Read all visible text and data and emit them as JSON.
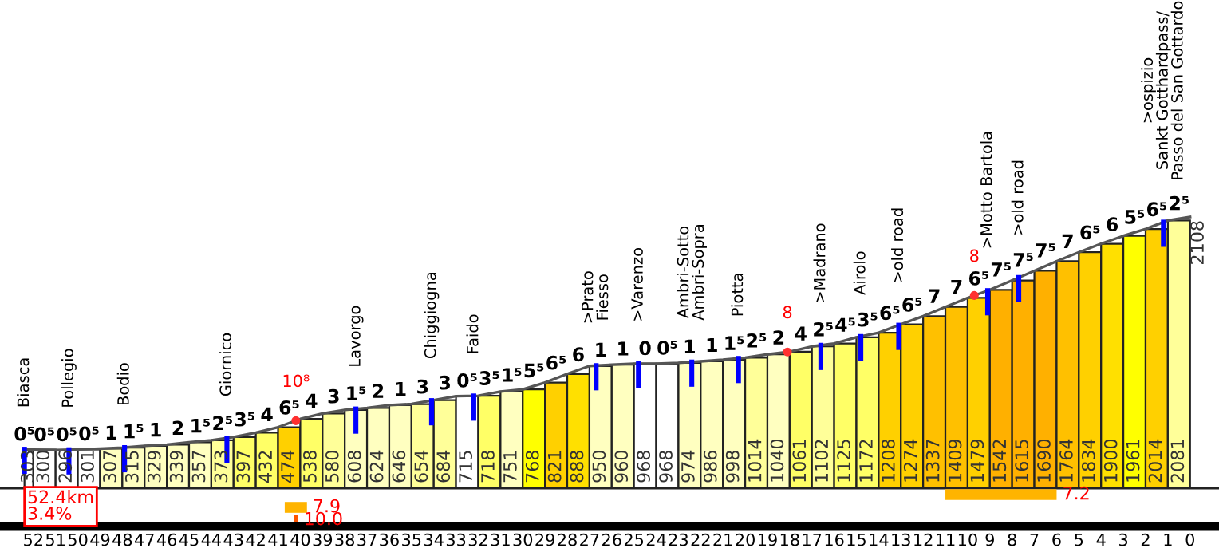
{
  "chart_data": [
    {
      "type": "bar",
      "xlim": [
        53.5,
        -1.3
      ],
      "xticks": [
        52,
        51,
        50,
        49,
        48,
        47,
        46,
        45,
        44,
        43,
        42,
        41,
        40,
        39,
        38,
        37,
        36,
        35,
        34,
        33,
        32,
        31,
        30,
        29,
        28,
        27,
        26,
        25,
        24,
        23,
        22,
        21,
        20,
        19,
        18,
        17,
        16,
        15,
        14,
        13,
        12,
        11,
        10,
        9,
        8,
        7,
        6,
        5,
        4,
        3,
        2,
        1,
        0
      ],
      "tick_labels": false,
      "x": [
        52.2,
        51.5,
        50.5,
        49.5,
        48.5,
        47.5,
        46.5,
        45.5,
        44.5,
        43.5,
        42.5,
        41.5,
        40.5,
        39.5,
        38.5,
        37.5,
        36.5,
        35.5,
        34.5,
        33.5,
        32.5,
        31.5,
        30.5,
        29.5,
        28.5,
        27.5,
        26.5,
        25.5,
        24.5,
        23.5,
        22.5,
        21.5,
        20.5,
        19.5,
        18.5,
        17.5,
        16.5,
        15.5,
        14.5,
        13.5,
        12.5,
        11.5,
        10.5,
        9.5,
        8.5,
        7.5,
        6.5,
        5.5,
        4.5,
        3.5,
        2.5,
        1.5,
        0.5
      ],
      "series": [
        {
          "values": [
            303,
            300,
            296,
            301,
            307,
            315,
            329,
            339,
            357,
            373,
            397,
            432,
            474,
            538,
            580,
            608,
            624,
            646,
            654,
            684,
            715,
            718,
            751,
            768,
            821,
            888,
            950,
            960,
            968,
            968,
            974,
            986,
            998,
            1014,
            1040,
            1061,
            1102,
            1125,
            1172,
            1208,
            1274,
            1337,
            1409,
            1479,
            1542,
            1615,
            1690,
            1764,
            1834,
            1900,
            1961,
            2014,
            2081
          ],
          "value_labels": [
            "303",
            "300",
            "296",
            "301",
            "307",
            "315",
            "329",
            "339",
            "357",
            "373",
            "397",
            "432",
            "474",
            "538",
            "580",
            "608",
            "624",
            "646",
            "654",
            "684",
            "715",
            "718",
            "751",
            "768",
            "821",
            "888",
            "950",
            "960",
            "968",
            "968",
            "974",
            "986",
            "998",
            "1014",
            "1040",
            "1061",
            "1102",
            "1125",
            "1172",
            "1208",
            "1274",
            "1337",
            "1409",
            "1479",
            "1542",
            "1615",
            "1690",
            "1764",
            "1834",
            "1900",
            "1961",
            "2014",
            "2081"
          ],
          "colors": [
            "#ffffff",
            "#ffffff",
            "#ffffff",
            "#ffffff",
            "#ffffc0",
            "#ffffc0",
            "#ffffc0",
            "#ffffc0",
            "#ffffc0",
            "#ffff99",
            "#ffff66",
            "#ffff66",
            "#ffd000",
            "#ffff66",
            "#ffff99",
            "#ffffc0",
            "#ffffc0",
            "#ffffc0",
            "#ffff99",
            "#ffff99",
            "#ffffff",
            "#ffff66",
            "#ffffc0",
            "#ffff00",
            "#ffd000",
            "#ffe000",
            "#ffffc0",
            "#ffffc0",
            "#ffffff",
            "#ffffff",
            "#ffffc0",
            "#ffffc0",
            "#ffffc0",
            "#ffff99",
            "#ffffc0",
            "#ffff66",
            "#ffff99",
            "#ffff66",
            "#ffff66",
            "#ffd000",
            "#ffd000",
            "#ffc000",
            "#ffc000",
            "#ffd000",
            "#ffb000",
            "#ffb000",
            "#ffb000",
            "#ffc000",
            "#ffd000",
            "#ffe000",
            "#ffff00",
            "#ffd000",
            "#ffff99"
          ]
        },
        {
          "type": "line",
          "color": "#555555",
          "x": [
            52.4,
            52,
            51,
            50,
            49,
            48,
            47,
            46,
            45,
            44,
            43,
            42,
            41,
            40,
            39,
            38,
            37,
            36,
            35,
            34,
            33,
            32,
            31,
            30,
            29,
            28,
            27,
            26,
            25,
            24,
            23,
            22,
            21,
            20,
            19,
            18,
            17,
            16,
            15,
            14,
            13,
            12,
            11,
            10,
            9,
            8,
            7,
            6,
            5,
            4,
            3,
            2,
            1,
            0
          ],
          "values": [
            303,
            300,
            296,
            301,
            307,
            315,
            329,
            339,
            357,
            373,
            397,
            432,
            474,
            538,
            580,
            608,
            624,
            646,
            654,
            684,
            715,
            718,
            751,
            768,
            821,
            888,
            950,
            960,
            968,
            968,
            974,
            986,
            998,
            1014,
            1040,
            1061,
            1102,
            1125,
            1172,
            1208,
            1274,
            1337,
            1409,
            1479,
            1542,
            1615,
            1690,
            1764,
            1834,
            1900,
            1961,
            2014,
            2081,
            2108
          ],
          "value_labels": [
            null,
            null,
            null,
            null,
            null,
            null,
            null,
            null,
            null,
            null,
            null,
            null,
            null,
            null,
            null,
            null,
            null,
            null,
            null,
            null,
            null,
            null,
            null,
            null,
            null,
            null,
            null,
            null,
            null,
            null,
            null,
            null,
            null,
            null,
            null,
            null,
            null,
            null,
            null,
            null,
            null,
            null,
            null,
            null,
            null,
            null,
            null,
            null,
            null,
            null,
            null,
            null,
            null,
            "2108"
          ]
        }
      ],
      "annotations": [
        {
          "text": "0⁵",
          "x": 52.4,
          "y": 303
        },
        {
          "text": "0⁵",
          "x": 51.5,
          "y": 298
        },
        {
          "text": "0⁵",
          "x": 50.5,
          "y": 298.5
        },
        {
          "text": "0⁵",
          "x": 49.5,
          "y": 304
        },
        {
          "text": "1",
          "x": 48.5,
          "y": 311
        },
        {
          "text": "1⁵",
          "x": 47.5,
          "y": 322
        },
        {
          "text": "1",
          "x": 46.5,
          "y": 334
        },
        {
          "text": "2",
          "x": 45.5,
          "y": 348
        },
        {
          "text": "1⁵",
          "x": 44.5,
          "y": 365
        },
        {
          "text": "2⁵",
          "x": 43.5,
          "y": 385
        },
        {
          "text": "3⁵",
          "x": 42.5,
          "y": 414.5
        },
        {
          "text": "4",
          "x": 41.5,
          "y": 453
        },
        {
          "text": "6⁵",
          "x": 40.5,
          "y": 506
        },
        {
          "text": "4",
          "x": 39.5,
          "y": 559
        },
        {
          "text": "3",
          "x": 38.5,
          "y": 594
        },
        {
          "text": "1⁵",
          "x": 37.5,
          "y": 616
        },
        {
          "text": "2",
          "x": 36.5,
          "y": 635
        },
        {
          "text": "1",
          "x": 35.5,
          "y": 650
        },
        {
          "text": "3",
          "x": 34.5,
          "y": 669
        },
        {
          "text": "3",
          "x": 33.5,
          "y": 699.5
        },
        {
          "text": "0⁵",
          "x": 32.5,
          "y": 716.5
        },
        {
          "text": "3⁵",
          "x": 31.5,
          "y": 734.5
        },
        {
          "text": "1⁵",
          "x": 30.5,
          "y": 759.5
        },
        {
          "text": "5⁵",
          "x": 29.5,
          "y": 794.5
        },
        {
          "text": "6⁵",
          "x": 28.5,
          "y": 854.5
        },
        {
          "text": "6",
          "x": 27.5,
          "y": 919
        },
        {
          "text": "1",
          "x": 26.5,
          "y": 955
        },
        {
          "text": "1",
          "x": 25.5,
          "y": 964
        },
        {
          "text": "0",
          "x": 24.5,
          "y": 968
        },
        {
          "text": "0⁵",
          "x": 23.5,
          "y": 971
        },
        {
          "text": "1",
          "x": 22.5,
          "y": 980
        },
        {
          "text": "1",
          "x": 21.5,
          "y": 992
        },
        {
          "text": "1⁵",
          "x": 20.5,
          "y": 1006
        },
        {
          "text": "2⁵",
          "x": 19.5,
          "y": 1027
        },
        {
          "text": "2",
          "x": 18.5,
          "y": 1050.5
        },
        {
          "text": "4",
          "x": 17.5,
          "y": 1081.5
        },
        {
          "text": "2⁵",
          "x": 16.5,
          "y": 1113.5
        },
        {
          "text": "4⁵",
          "x": 15.5,
          "y": 1148.5
        },
        {
          "text": "3⁵",
          "x": 14.5,
          "y": 1190
        },
        {
          "text": "6⁵",
          "x": 13.5,
          "y": 1241
        },
        {
          "text": "6⁵",
          "x": 12.5,
          "y": 1305.5
        },
        {
          "text": "7",
          "x": 11.5,
          "y": 1373
        },
        {
          "text": "7",
          "x": 10.5,
          "y": 1444
        },
        {
          "text": "6⁵",
          "x": 9.5,
          "y": 1510.5
        },
        {
          "text": "7⁵",
          "x": 8.5,
          "y": 1578.5
        },
        {
          "text": "7⁵",
          "x": 7.5,
          "y": 1652.5
        },
        {
          "text": "7⁵",
          "x": 6.5,
          "y": 1727
        },
        {
          "text": "7",
          "x": 5.5,
          "y": 1799
        },
        {
          "text": "6⁵",
          "x": 4.5,
          "y": 1867
        },
        {
          "text": "6",
          "x": 3.5,
          "y": 1930.5
        },
        {
          "text": "5⁵",
          "x": 2.5,
          "y": 1987.5
        },
        {
          "text": "6⁵",
          "x": 1.5,
          "y": 2047.5
        },
        {
          "text": "2⁵",
          "x": 0.5,
          "y": 2094.5
        },
        {
          "text": "Biasca",
          "x": 52.4,
          "y": 303
        },
        {
          "text": "Pollegio",
          "x": 50.4,
          "y": 299
        },
        {
          "text": "Bodio",
          "x": 47.9,
          "y": 316
        },
        {
          "text": "Giornico",
          "x": 43.3,
          "y": 390
        },
        {
          "text": "Lavorgo",
          "x": 37.5,
          "y": 616
        },
        {
          "text": "Chiggiogna",
          "x": 34.1,
          "y": 681
        },
        {
          "text": "Faido",
          "x": 32.2,
          "y": 717
        },
        {
          "text": ">Prato\nFiesso",
          "x": 26.7,
          "y": 953
        },
        {
          "text": ">Varenzo",
          "x": 24.8,
          "y": 968
        },
        {
          "text": "Ambri-Sotto\nAmbri-Sopra",
          "x": 22.4,
          "y": 981
        },
        {
          "text": "Piotta",
          "x": 20.3,
          "y": 1009
        },
        {
          "text": ">Madrano",
          "x": 16.6,
          "y": 1111
        },
        {
          "text": "Airolo",
          "x": 14.8,
          "y": 1179
        },
        {
          "text": ">old road",
          "x": 13.1,
          "y": 1267
        },
        {
          "text": ">Motto Bartola",
          "x": 9.1,
          "y": 1536
        },
        {
          "text": ">old road",
          "x": 7.7,
          "y": 1638
        },
        {
          "text": ">ospizio\nSankt Gotthardpass/\nPasso del San Gottardo",
          "x": 1.2,
          "y": 2068
        },
        {
          "text": "10⁸",
          "x": 40.2,
          "y": 525
        },
        {
          "text": "8",
          "x": 18.1,
          "y": 1059
        },
        {
          "text": "8",
          "x": 9.7,
          "y": 1498
        },
        "52.4km\n3.4%"
      ]
    },
    {
      "type": "bar",
      "orientation": "horizontal",
      "categories": [
        null,
        null,
        null
      ],
      "base": [
        6.0,
        39.7,
        40.1
      ],
      "values": [
        5.0,
        1.0,
        0.2
      ],
      "colors": [
        "#ffb400",
        "#ffb400",
        "#ff5500"
      ],
      "annotations": [
        "7.2",
        "7.9",
        "10.0"
      ],
      "xlim": [
        53.5,
        -1.3
      ],
      "xticks": [
        52,
        51,
        50,
        49,
        48,
        47,
        46,
        45,
        44,
        43,
        42,
        41,
        40,
        39,
        38,
        37,
        36,
        35,
        34,
        33,
        32,
        31,
        30,
        29,
        28,
        27,
        26,
        25,
        24,
        23,
        22,
        21,
        20,
        19,
        18,
        17,
        16,
        15,
        14,
        13,
        12,
        11,
        10,
        9,
        8,
        7,
        6,
        5,
        4,
        3,
        2,
        1,
        0
      ]
    }
  ]
}
